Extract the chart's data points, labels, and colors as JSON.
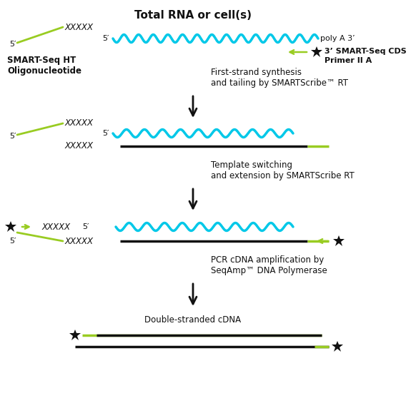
{
  "title": "Total RNA or cell(s)",
  "bg_color": "#ffffff",
  "cyan": "#00c8e8",
  "green": "#99cc22",
  "black": "#111111",
  "label_ht_line1": "SMART-Seq HT",
  "label_ht_line2": "Oligonucleotide",
  "label_poly_a": "poly A 3’",
  "label_3prime_line1": "3’ SMART-Seq CDS",
  "label_3prime_line2": "Primer II A",
  "label_step1_line1": "First-strand synthesis",
  "label_step1_line2": "and tailing by SMARTScribe™ RT",
  "label_step2_line1": "Template switching",
  "label_step2_line2": "and extension by SMARTScribe RT",
  "label_step3_line1": "PCR cDNA amplification by",
  "label_step3_line2": "SeqAmp™ DNA Polymerase",
  "label_step4": "Double-stranded cDNA",
  "figure_width": 5.75,
  "figure_height": 5.65,
  "dpi": 100
}
